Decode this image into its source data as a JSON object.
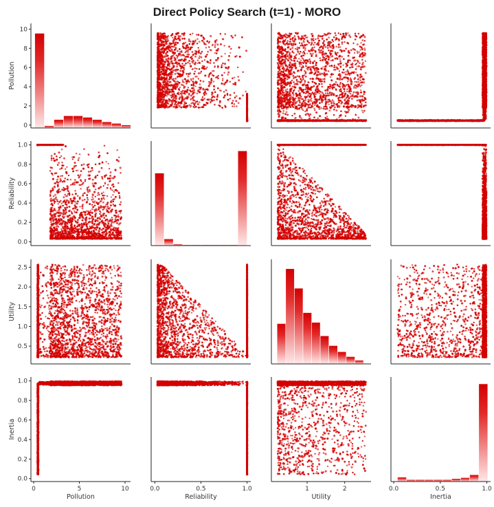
{
  "title": "Direct Policy Search (t=1) - MORO",
  "colors": {
    "marker": "#d40000",
    "fade": "#ffffff",
    "axis": "#222222"
  },
  "chart_data": {
    "type": "pairplot",
    "title": "Direct Policy Search (t=1) - MORO",
    "variables": [
      "Pollution",
      "Reliability",
      "Utility",
      "Inertia"
    ],
    "axes": {
      "Pollution": {
        "range": [
          -0.3,
          10.6
        ],
        "ticks": [
          0,
          5,
          10
        ],
        "tick_labels": [
          "0",
          "5",
          "10"
        ],
        "ytick_labels": [
          "0",
          "2",
          "4",
          "6",
          "8",
          "10"
        ],
        "yticks": [
          0,
          2,
          4,
          6,
          8,
          10
        ]
      },
      "Reliability": {
        "range": [
          -0.04,
          1.04
        ],
        "ticks": [
          0,
          0.5,
          1.0
        ],
        "tick_labels": [
          "0.0",
          "0.5",
          "1.0"
        ],
        "yticks": [
          0,
          0.2,
          0.4,
          0.6,
          0.8,
          1.0
        ],
        "ytick_labels": [
          "0.0",
          "0.2",
          "0.4",
          "0.6",
          "0.8",
          "1.0"
        ]
      },
      "Utility": {
        "range": [
          0.05,
          2.7
        ],
        "ticks": [
          1,
          2
        ],
        "tick_labels": [
          "1",
          "2"
        ],
        "yticks": [
          0.5,
          1.0,
          1.5,
          2.0,
          2.5
        ],
        "ytick_labels": [
          "0.5",
          "1.0",
          "1.5",
          "2.0",
          "2.5"
        ]
      },
      "Inertia": {
        "range": [
          -0.03,
          1.04
        ],
        "ticks": [
          0,
          0.5,
          1.0
        ],
        "tick_labels": [
          "0.0",
          "0.5",
          "1.0"
        ],
        "yticks": [
          0,
          0.2,
          0.4,
          0.6,
          0.8,
          1.0
        ],
        "ytick_labels": [
          "0.0",
          "0.2",
          "0.4",
          "0.6",
          "0.8",
          "1.0"
        ]
      }
    },
    "histograms": {
      "Pollution": {
        "bins": [
          0.12,
          1.17,
          2.22,
          3.27,
          4.32,
          5.37,
          6.42,
          7.47,
          8.52,
          9.57
        ],
        "counts": [
          6.2,
          0.15,
          0.55,
          0.8,
          0.8,
          0.7,
          0.55,
          0.4,
          0.3,
          0.2
        ],
        "ymax": 6.4
      },
      "Reliability": {
        "bins": [
          0.0,
          0.1,
          0.2,
          0.3,
          0.4,
          0.5,
          0.6,
          0.7,
          0.8,
          0.9,
          1.0
        ],
        "counts": [
          0.49,
          0.045,
          0.01,
          0.005,
          0.005,
          0.005,
          0.005,
          0.005,
          0.005,
          0.64
        ],
        "ymax": 0.66
      },
      "Utility": {
        "bins": [
          0.2,
          0.43,
          0.66,
          0.89,
          1.12,
          1.35,
          1.58,
          1.81,
          2.04,
          2.27,
          2.5
        ],
        "counts": [
          0.33,
          0.78,
          0.62,
          0.42,
          0.34,
          0.23,
          0.15,
          0.1,
          0.06,
          0.03
        ],
        "ymax": 0.8
      },
      "Inertia": {
        "bins": [
          0.04,
          0.137,
          0.234,
          0.331,
          0.428,
          0.525,
          0.622,
          0.719,
          0.816,
          0.913,
          1.0
        ],
        "counts": [
          0.045,
          0.02,
          0.02,
          0.02,
          0.02,
          0.02,
          0.03,
          0.04,
          0.07,
          1.0
        ],
        "ymax": 1.0
      }
    },
    "scatter_description": {
      "Pollution-Reliability": "Most points at Pollution 0.4-9.7 with Reliability between 0.04 and 1.0, dense near low reliability; band at Reliability 1.0 for Pollution 0.5-3",
      "Utility-Pollution": "Points spread for Utility 0.2-2.6, Pollution 0.4-9.7; flat band at Pollution 0.4",
      "Inertia-Pollution": "Flat band at Pollution 0.4 for Inertia 0-0.97; vertical band at Inertia 0.97-1.0",
      "Utility-Reliability": "Triangular region: reliability decreases with utility; row at Reliability 1.0",
      "Inertia-Reliability": "Row at Reliability 1.0; vertical column at Inertia 0.97",
      "Utility-Inertia": "Points spread for Utility 0.2-2.6, Inertia 0.03-1.0"
    }
  }
}
